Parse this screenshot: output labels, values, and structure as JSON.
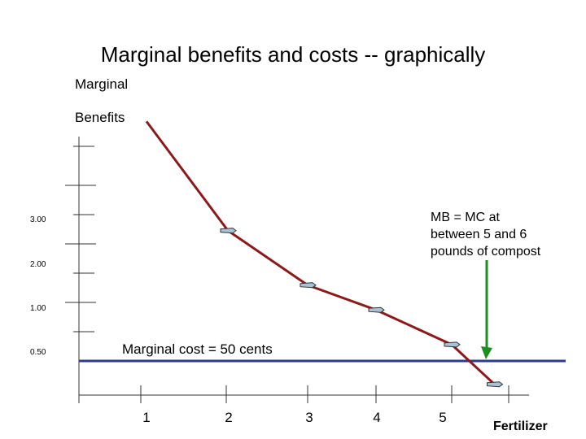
{
  "chart_data": {
    "type": "line",
    "title": "Marginal benefits and costs -- graphically",
    "ylabel": [
      "Marginal",
      "Benefits"
    ],
    "xlabel": "Fertilizer",
    "x_ticks": [
      "1",
      "2",
      "3",
      "4",
      "5"
    ],
    "y_ticks": [
      "3.00",
      "2.00",
      "1.00",
      "0.50"
    ],
    "series": [
      {
        "name": "",
        "color": "#8b1a1a",
        "marker_color": "#a9c3d6",
        "points": [
          {
            "x": 1,
            "y": 5.1,
            "marker": false
          },
          {
            "x": 2,
            "y": 2.9,
            "marker": true
          },
          {
            "x": 3,
            "y": 1.8,
            "marker": true
          },
          {
            "x": 4,
            "y": 1.3,
            "marker": true
          },
          {
            "x": 5,
            "y": 0.6,
            "marker": true
          },
          {
            "x": 5.75,
            "y": -0.2,
            "marker": true
          }
        ]
      }
    ],
    "horizontal_lines": [
      {
        "name": "Marginal cost = 50 cents",
        "y": 0.2,
        "color": "#2e3a8c"
      }
    ],
    "annotations": [
      {
        "text": [
          "MB = MC at",
          "between  5 and 6",
          "pounds of compost"
        ],
        "arrow_to": {
          "x": 5.6,
          "y": 0.2
        },
        "arrow_color": "#1f8c1f"
      }
    ],
    "legend": "none",
    "grid": false
  }
}
